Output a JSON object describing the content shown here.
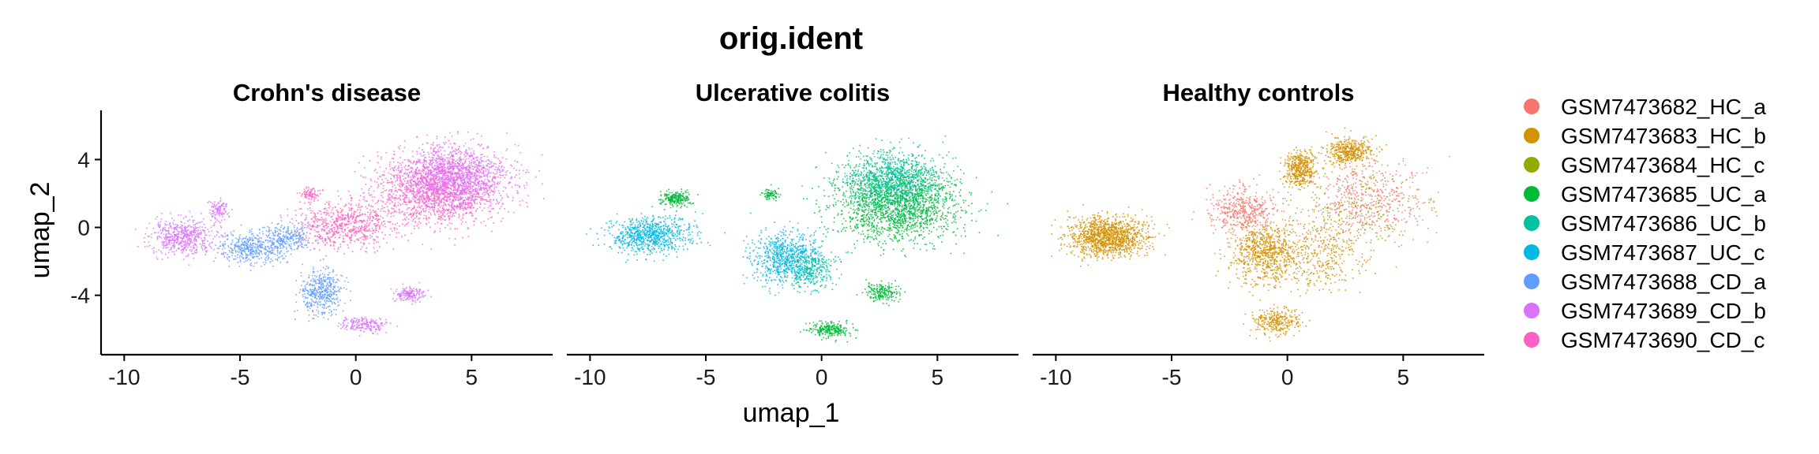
{
  "chart_data": {
    "type": "scatter",
    "title": "orig.ident",
    "xlabel": "umap_1",
    "ylabel": "umap_2",
    "xlim": [
      -11,
      8.5
    ],
    "ylim": [
      -7.5,
      6.9
    ],
    "xticks": [
      -10,
      -5,
      0,
      5
    ],
    "xtick_labels": [
      "-10",
      "-5",
      "0",
      "5"
    ],
    "yticks": [
      -4,
      0,
      4
    ],
    "ytick_labels": [
      "-4",
      "0",
      "4"
    ],
    "grid": false,
    "legend_position": "right",
    "series": [
      {
        "name": "GSM7473682_HC_a",
        "color": "#F8766D"
      },
      {
        "name": "GSM7473683_HC_b",
        "color": "#D39200"
      },
      {
        "name": "GSM7473684_HC_c",
        "color": "#93AA00"
      },
      {
        "name": "GSM7473685_UC_a",
        "color": "#00BA38"
      },
      {
        "name": "GSM7473686_UC_b",
        "color": "#00C19F"
      },
      {
        "name": "GSM7473687_UC_c",
        "color": "#00B9E3"
      },
      {
        "name": "GSM7473688_CD_a",
        "color": "#619CFF"
      },
      {
        "name": "GSM7473689_CD_b",
        "color": "#DB72FB"
      },
      {
        "name": "GSM7473690_CD_c",
        "color": "#FF61C3"
      }
    ],
    "facets": [
      {
        "label": "Crohn's disease",
        "clusters": [
          {
            "series": 8,
            "cx": 3.5,
            "cy": 2.2,
            "sx": 2.4,
            "sy": 1.9,
            "n": 1500
          },
          {
            "series": 7,
            "cx": 4.2,
            "cy": 3.0,
            "sx": 2.2,
            "sy": 1.7,
            "n": 1400
          },
          {
            "series": 8,
            "cx": -0.5,
            "cy": 0.2,
            "sx": 1.8,
            "sy": 1.2,
            "n": 700
          },
          {
            "series": 7,
            "cx": -7.5,
            "cy": -0.5,
            "sx": 1.3,
            "sy": 0.9,
            "n": 550
          },
          {
            "series": 6,
            "cx": -4.5,
            "cy": -1.2,
            "sx": 1.3,
            "sy": 0.8,
            "n": 450
          },
          {
            "series": 6,
            "cx": -1.5,
            "cy": -3.8,
            "sx": 0.8,
            "sy": 1.2,
            "n": 450
          },
          {
            "series": 7,
            "cx": 0.3,
            "cy": -5.7,
            "sx": 0.9,
            "sy": 0.4,
            "n": 200
          },
          {
            "series": 7,
            "cx": 2.3,
            "cy": -3.9,
            "sx": 0.6,
            "sy": 0.4,
            "n": 170
          },
          {
            "series": 8,
            "cx": -2.0,
            "cy": 2.0,
            "sx": 0.4,
            "sy": 0.4,
            "n": 80
          },
          {
            "series": 7,
            "cx": -6.0,
            "cy": 1.0,
            "sx": 0.4,
            "sy": 0.6,
            "n": 110
          },
          {
            "series": 6,
            "cx": -3.0,
            "cy": -0.6,
            "sx": 1.0,
            "sy": 0.7,
            "n": 250
          }
        ]
      },
      {
        "label": "Ulcerative colitis",
        "clusters": [
          {
            "series": 3,
            "cx": 3.2,
            "cy": 1.4,
            "sx": 2.4,
            "sy": 1.9,
            "n": 1800
          },
          {
            "series": 4,
            "cx": 3.0,
            "cy": 2.8,
            "sx": 2.0,
            "sy": 1.6,
            "n": 1000
          },
          {
            "series": 5,
            "cx": -7.5,
            "cy": -0.4,
            "sx": 1.6,
            "sy": 1.0,
            "n": 800
          },
          {
            "series": 5,
            "cx": -1.5,
            "cy": -1.8,
            "sx": 1.4,
            "sy": 1.4,
            "n": 800
          },
          {
            "series": 3,
            "cx": -6.3,
            "cy": 1.7,
            "sx": 0.6,
            "sy": 0.4,
            "n": 220
          },
          {
            "series": 3,
            "cx": 0.3,
            "cy": -6.0,
            "sx": 0.8,
            "sy": 0.4,
            "n": 250
          },
          {
            "series": 3,
            "cx": 2.6,
            "cy": -3.8,
            "sx": 0.7,
            "sy": 0.5,
            "n": 200
          },
          {
            "series": 3,
            "cx": -2.2,
            "cy": 2.0,
            "sx": 0.3,
            "sy": 0.3,
            "n": 80
          },
          {
            "series": 4,
            "cx": -0.5,
            "cy": -2.5,
            "sx": 0.9,
            "sy": 1.0,
            "n": 250
          }
        ]
      },
      {
        "label": "Healthy controls",
        "clusters": [
          {
            "series": 1,
            "cx": -7.8,
            "cy": -0.5,
            "sx": 1.5,
            "sy": 1.0,
            "n": 1300
          },
          {
            "series": 1,
            "cx": -1.0,
            "cy": -1.5,
            "sx": 1.3,
            "sy": 1.6,
            "n": 800
          },
          {
            "series": 1,
            "cx": 0.5,
            "cy": 3.5,
            "sx": 0.6,
            "sy": 1.0,
            "n": 450
          },
          {
            "series": 1,
            "cx": 2.6,
            "cy": 4.5,
            "sx": 0.9,
            "sy": 0.7,
            "n": 450
          },
          {
            "series": 0,
            "cx": -2.0,
            "cy": 1.0,
            "sx": 1.3,
            "sy": 1.2,
            "n": 450
          },
          {
            "series": 0,
            "cx": 3.5,
            "cy": 1.5,
            "sx": 2.2,
            "sy": 2.2,
            "n": 500
          },
          {
            "series": 2,
            "cx": 3.0,
            "cy": 1.0,
            "sx": 2.5,
            "sy": 2.2,
            "n": 200
          },
          {
            "series": 1,
            "cx": -0.5,
            "cy": -5.5,
            "sx": 0.9,
            "sy": 0.7,
            "n": 300
          },
          {
            "series": 1,
            "cx": 1.5,
            "cy": -1.5,
            "sx": 1.6,
            "sy": 2.0,
            "n": 350
          }
        ]
      }
    ]
  }
}
